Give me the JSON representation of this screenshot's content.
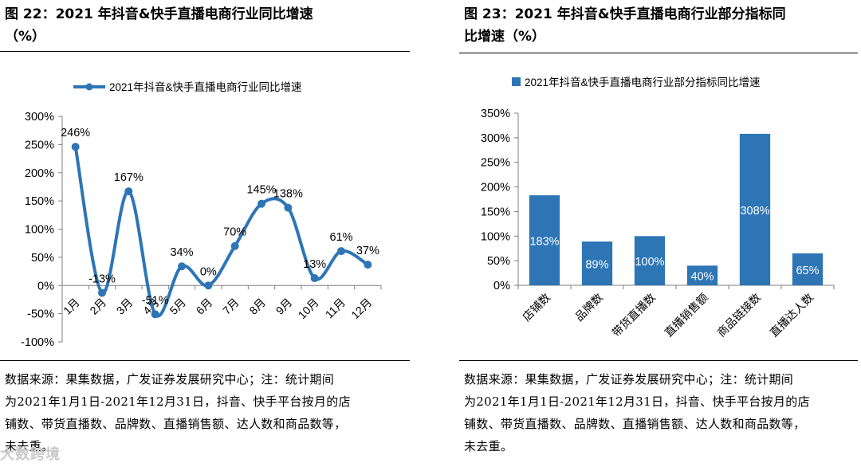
{
  "figure_left": {
    "title_line1": "图 22：2021 年抖音&快手直播电商行业同比增速",
    "title_line2": "（%）",
    "source_lines": [
      "数据来源：果集数据，广发证券发展研究中心；注：统计期间",
      "为2021年1月1日-2021年12月31日，抖音、快手平台按月的店",
      "铺数、带货直播数、品牌数、直播销售额、达人数和商品数等，",
      "未去重。"
    ]
  },
  "figure_right": {
    "title_line1": "图 23：2021 年抖音&快手直播电商行业部分指标同",
    "title_line2": "比增速（%）",
    "source_lines": [
      "数据来源：果集数据，广发证券发展研究中心；注：统计期间",
      "为2021年1月1日-2021年12月31日，抖音、快手平台按月的店",
      "铺数、带货直播数、品牌数、直播销售额、达人数和商品数等，",
      "未去重。"
    ]
  },
  "watermark": "大数跨境",
  "colors": {
    "series": "#2e75b6",
    "axis": "#7f7f7f",
    "text": "#000000"
  },
  "chart_data": [
    {
      "type": "line",
      "legend": "2021年抖音&快手直播电商行业同比增速",
      "legend_position": "top",
      "categories": [
        "1月",
        "2月",
        "3月",
        "4月",
        "5月",
        "6月",
        "7月",
        "8月",
        "9月",
        "10月",
        "11月",
        "12月"
      ],
      "values": [
        246,
        -13,
        167,
        -51,
        34,
        0,
        70,
        145,
        138,
        13,
        61,
        37
      ],
      "labels": [
        "246%",
        "-13%",
        "167%",
        "-51%",
        "34%",
        "0%",
        "70%",
        "145%",
        "138%",
        "13%",
        "61%",
        "37%"
      ],
      "ylim": [
        -100,
        300
      ],
      "yticks": [
        -100,
        -50,
        0,
        50,
        100,
        150,
        200,
        250,
        300
      ],
      "ytick_labels": [
        "-100%",
        "-50%",
        "0%",
        "50%",
        "100%",
        "150%",
        "200%",
        "250%",
        "300%"
      ],
      "smooth": true,
      "markers": true,
      "grid": false
    },
    {
      "type": "bar",
      "legend": "2021年抖音&快手直播电商行业部分指标同比增速",
      "legend_position": "top",
      "categories": [
        "店铺数",
        "品牌数",
        "带货直播数",
        "直播销售额",
        "商品链接数",
        "直播达人数"
      ],
      "values": [
        183,
        89,
        100,
        40,
        308,
        65
      ],
      "labels": [
        "183%",
        "89%",
        "100%",
        "40%",
        "308%",
        "65%"
      ],
      "ylim": [
        0,
        350
      ],
      "yticks": [
        0,
        50,
        100,
        150,
        200,
        250,
        300,
        350
      ],
      "ytick_labels": [
        "0%",
        "50%",
        "100%",
        "150%",
        "200%",
        "250%",
        "300%",
        "350%"
      ],
      "grid": false
    }
  ]
}
